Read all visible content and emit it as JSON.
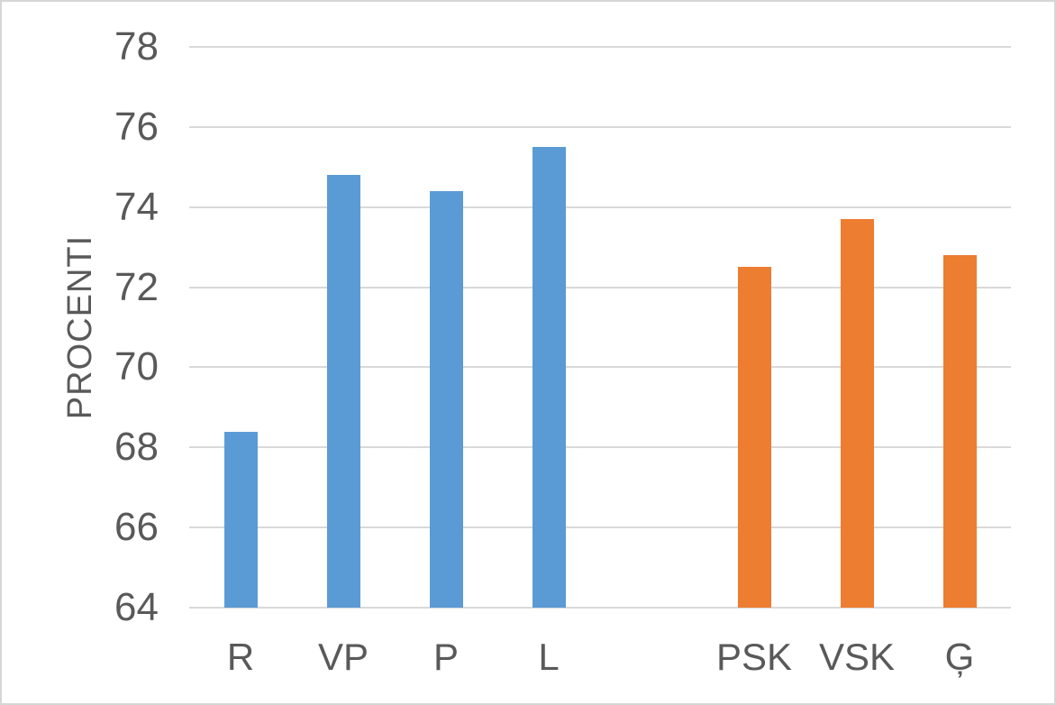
{
  "chart_data": {
    "type": "bar",
    "title": "",
    "xlabel": "",
    "ylabel": "PROCENTI",
    "ylim": [
      64,
      78
    ],
    "yticks": [
      64,
      66,
      68,
      70,
      72,
      74,
      76,
      78
    ],
    "grid": true,
    "legend": "none",
    "gap_slots_between_series": 1,
    "series": [
      {
        "name": "group-1-blue",
        "color": "#5B9BD5",
        "categories": [
          "R",
          "VP",
          "P",
          "L"
        ],
        "values": [
          68.4,
          74.8,
          74.4,
          75.5
        ]
      },
      {
        "name": "group-2-orange",
        "color": "#ED7D31",
        "categories": [
          "PSK",
          "VSK",
          "Ģ"
        ],
        "values": [
          72.5,
          73.7,
          72.8
        ]
      }
    ],
    "colors": {
      "axis_text": "#595959",
      "gridline": "#D9D9D9",
      "frame_border": "#D6D6D6",
      "background": "#FFFFFF"
    }
  }
}
